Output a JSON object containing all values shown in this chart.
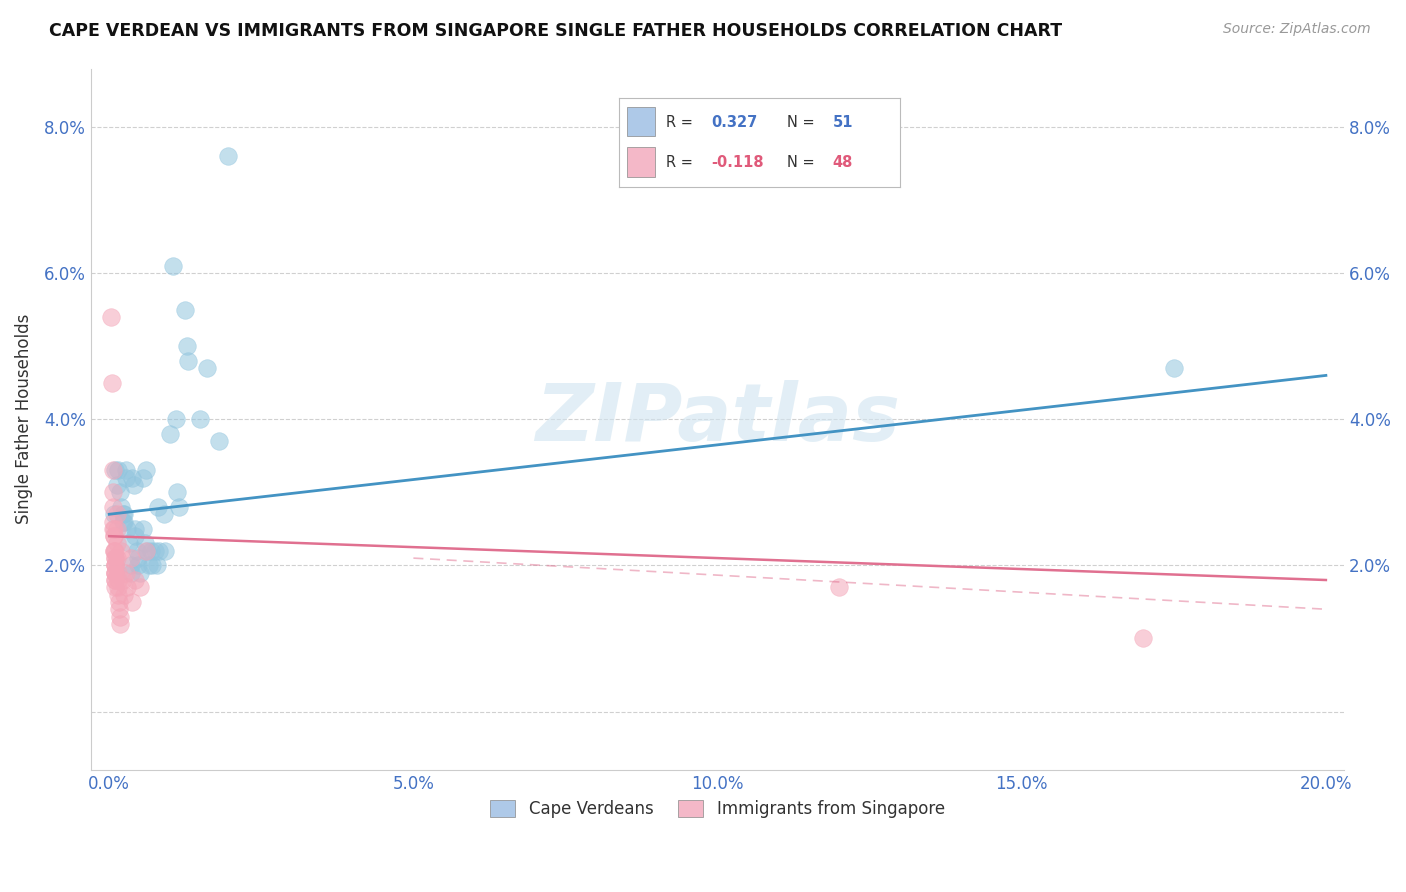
{
  "title": "CAPE VERDEAN VS IMMIGRANTS FROM SINGAPORE SINGLE FATHER HOUSEHOLDS CORRELATION CHART",
  "source": "Source: ZipAtlas.com",
  "ylabel": "Single Father Households",
  "watermark": "ZIPatlas",
  "blue_R": 0.327,
  "blue_N": 51,
  "pink_R": -0.118,
  "pink_N": 48,
  "blue_color": "#92c5de",
  "pink_color": "#f4a6b8",
  "blue_line_color": "#4393c3",
  "pink_line_color": "#e07090",
  "blue_scatter": [
    [
      0.0008,
      0.027
    ],
    [
      0.001,
      0.033
    ],
    [
      0.0012,
      0.031
    ],
    [
      0.0015,
      0.033
    ],
    [
      0.0018,
      0.03
    ],
    [
      0.002,
      0.028
    ],
    [
      0.0022,
      0.027
    ],
    [
      0.0022,
      0.026
    ],
    [
      0.0025,
      0.027
    ],
    [
      0.0025,
      0.026
    ],
    [
      0.0028,
      0.033
    ],
    [
      0.0028,
      0.032
    ],
    [
      0.003,
      0.025
    ],
    [
      0.0032,
      0.023
    ],
    [
      0.0035,
      0.02
    ],
    [
      0.0035,
      0.019
    ],
    [
      0.0038,
      0.032
    ],
    [
      0.004,
      0.031
    ],
    [
      0.0042,
      0.025
    ],
    [
      0.0042,
      0.024
    ],
    [
      0.0045,
      0.022
    ],
    [
      0.0048,
      0.021
    ],
    [
      0.0048,
      0.02
    ],
    [
      0.005,
      0.019
    ],
    [
      0.0055,
      0.032
    ],
    [
      0.0055,
      0.025
    ],
    [
      0.0058,
      0.023
    ],
    [
      0.006,
      0.033
    ],
    [
      0.0062,
      0.022
    ],
    [
      0.0065,
      0.02
    ],
    [
      0.0068,
      0.022
    ],
    [
      0.007,
      0.02
    ],
    [
      0.0075,
      0.022
    ],
    [
      0.0078,
      0.02
    ],
    [
      0.008,
      0.028
    ],
    [
      0.0082,
      0.022
    ],
    [
      0.009,
      0.027
    ],
    [
      0.0092,
      0.022
    ],
    [
      0.01,
      0.038
    ],
    [
      0.0105,
      0.061
    ],
    [
      0.011,
      0.04
    ],
    [
      0.0112,
      0.03
    ],
    [
      0.0115,
      0.028
    ],
    [
      0.0125,
      0.055
    ],
    [
      0.0128,
      0.05
    ],
    [
      0.013,
      0.048
    ],
    [
      0.015,
      0.04
    ],
    [
      0.016,
      0.047
    ],
    [
      0.018,
      0.037
    ],
    [
      0.0195,
      0.076
    ],
    [
      0.175,
      0.047
    ]
  ],
  "pink_scatter": [
    [
      0.0003,
      0.054
    ],
    [
      0.0005,
      0.045
    ],
    [
      0.0006,
      0.033
    ],
    [
      0.0006,
      0.03
    ],
    [
      0.0007,
      0.028
    ],
    [
      0.0007,
      0.026
    ],
    [
      0.0007,
      0.025
    ],
    [
      0.0008,
      0.025
    ],
    [
      0.0008,
      0.024
    ],
    [
      0.0008,
      0.024
    ],
    [
      0.0008,
      0.022
    ],
    [
      0.0008,
      0.022
    ],
    [
      0.0009,
      0.022
    ],
    [
      0.0009,
      0.021
    ],
    [
      0.0009,
      0.021
    ],
    [
      0.0009,
      0.02
    ],
    [
      0.001,
      0.02
    ],
    [
      0.001,
      0.02
    ],
    [
      0.001,
      0.019
    ],
    [
      0.001,
      0.019
    ],
    [
      0.001,
      0.019
    ],
    [
      0.001,
      0.018
    ],
    [
      0.001,
      0.018
    ],
    [
      0.001,
      0.017
    ],
    [
      0.0012,
      0.027
    ],
    [
      0.0012,
      0.025
    ],
    [
      0.0013,
      0.023
    ],
    [
      0.0013,
      0.021
    ],
    [
      0.0014,
      0.019
    ],
    [
      0.0014,
      0.018
    ],
    [
      0.0015,
      0.017
    ],
    [
      0.0015,
      0.016
    ],
    [
      0.0016,
      0.015
    ],
    [
      0.0016,
      0.014
    ],
    [
      0.0017,
      0.013
    ],
    [
      0.0018,
      0.012
    ],
    [
      0.002,
      0.022
    ],
    [
      0.0022,
      0.018
    ],
    [
      0.0025,
      0.016
    ],
    [
      0.0028,
      0.019
    ],
    [
      0.003,
      0.017
    ],
    [
      0.0035,
      0.021
    ],
    [
      0.0038,
      0.015
    ],
    [
      0.0042,
      0.018
    ],
    [
      0.005,
      0.017
    ],
    [
      0.006,
      0.022
    ],
    [
      0.12,
      0.017
    ],
    [
      0.17,
      0.01
    ]
  ],
  "xlim": [
    -0.003,
    0.203
  ],
  "ylim": [
    -0.008,
    0.088
  ],
  "xticks": [
    0.0,
    0.05,
    0.1,
    0.15,
    0.2
  ],
  "xtick_labels": [
    "0.0%",
    "5.0%",
    "10.0%",
    "15.0%",
    "20.0%"
  ],
  "yticks": [
    0.0,
    0.02,
    0.04,
    0.06,
    0.08
  ],
  "ytick_labels": [
    "",
    "2.0%",
    "4.0%",
    "6.0%",
    "8.0%"
  ],
  "legend_labels": [
    "Cape Verdeans",
    "Immigrants from Singapore"
  ],
  "background_color": "#ffffff",
  "grid_color": "#d0d0d0"
}
